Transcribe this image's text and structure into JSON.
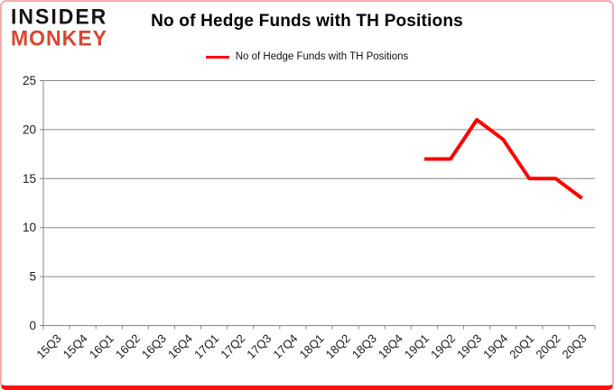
{
  "brand": {
    "line1": "INSIDER",
    "line2": "MONKEY",
    "accent_color": "#d94530"
  },
  "header": {
    "title": "No of Hedge Funds with TH Positions"
  },
  "legend": {
    "label": "No of Hedge Funds with TH Positions",
    "line_color": "#ff0000"
  },
  "chart_data": {
    "type": "line",
    "title": "No of Hedge Funds with TH Positions",
    "xlabel": "",
    "ylabel": "",
    "ylim": [
      0,
      25
    ],
    "yticks": [
      0,
      5,
      10,
      15,
      20,
      25
    ],
    "grid": true,
    "legend_position": "top-center",
    "categories": [
      "15Q3",
      "15Q4",
      "16Q1",
      "16Q2",
      "16Q3",
      "16Q4",
      "17Q1",
      "17Q2",
      "17Q3",
      "17Q4",
      "18Q1",
      "18Q2",
      "18Q3",
      "18Q4",
      "19Q1",
      "19Q2",
      "19Q3",
      "19Q4",
      "20Q1",
      "20Q2",
      "20Q3"
    ],
    "series": [
      {
        "name": "No of Hedge Funds with TH Positions",
        "color": "#ff0000",
        "values": [
          null,
          null,
          null,
          null,
          null,
          null,
          null,
          null,
          null,
          null,
          null,
          null,
          null,
          null,
          17,
          17,
          21,
          19,
          15,
          15,
          13
        ]
      }
    ]
  },
  "colors": {
    "grid": "#868686",
    "axis": "#868686",
    "tick_label": "#1a1a1a",
    "frame_border": "#f5abab",
    "frame_bottom": "#f91212",
    "background": "#ffffff"
  }
}
